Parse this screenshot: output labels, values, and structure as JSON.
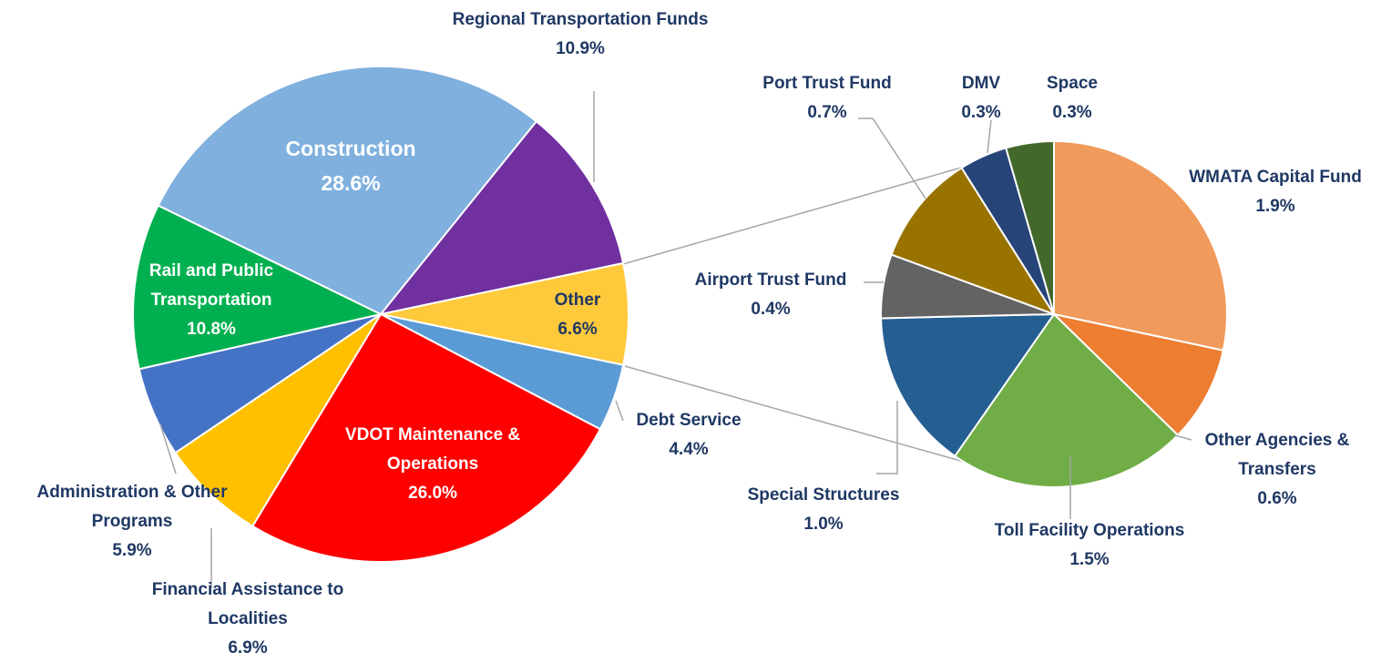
{
  "chart_data": [
    {
      "type": "pie",
      "categories": [
        "Other",
        "Debt Service",
        "VDOT Maintenance & Operations",
        "Financial Assistance to Localities",
        "Administration & Other Programs",
        "Rail and Public Transportation",
        "Construction",
        "Regional Transportation Funds"
      ],
      "values": [
        6.6,
        4.4,
        26.0,
        6.9,
        5.9,
        10.8,
        28.6,
        10.9
      ],
      "value_labels": [
        "6.6%",
        "4.4%",
        "26.0%",
        "6.9%",
        "5.9%",
        "10.8%",
        "28.6%",
        "10.9%"
      ],
      "colors": [
        "#ffc93c",
        "#5b9bd5",
        "#ff0000",
        "#ffc000",
        "#4472c4",
        "#00b050",
        "#7fb0de",
        "#7030a0"
      ]
    },
    {
      "type": "pie",
      "categories": [
        "WMATA Capital Fund",
        "Other Agencies & Transfers",
        "Toll Facility Operations",
        "Special Structures",
        "Airport Trust Fund",
        "Port Trust Fund",
        "DMV",
        "Space"
      ],
      "values": [
        1.9,
        0.6,
        1.5,
        1.0,
        0.4,
        0.7,
        0.3,
        0.3
      ],
      "value_labels": [
        "1.9%",
        "0.6%",
        "1.5%",
        "1.0%",
        "0.4%",
        "0.7%",
        "0.3%",
        "0.3%"
      ],
      "colors": [
        "#f09a5b",
        "#ed7d31",
        "#70ad47",
        "#255e91",
        "#636363",
        "#997300",
        "#264478",
        "#43682b"
      ]
    }
  ]
}
